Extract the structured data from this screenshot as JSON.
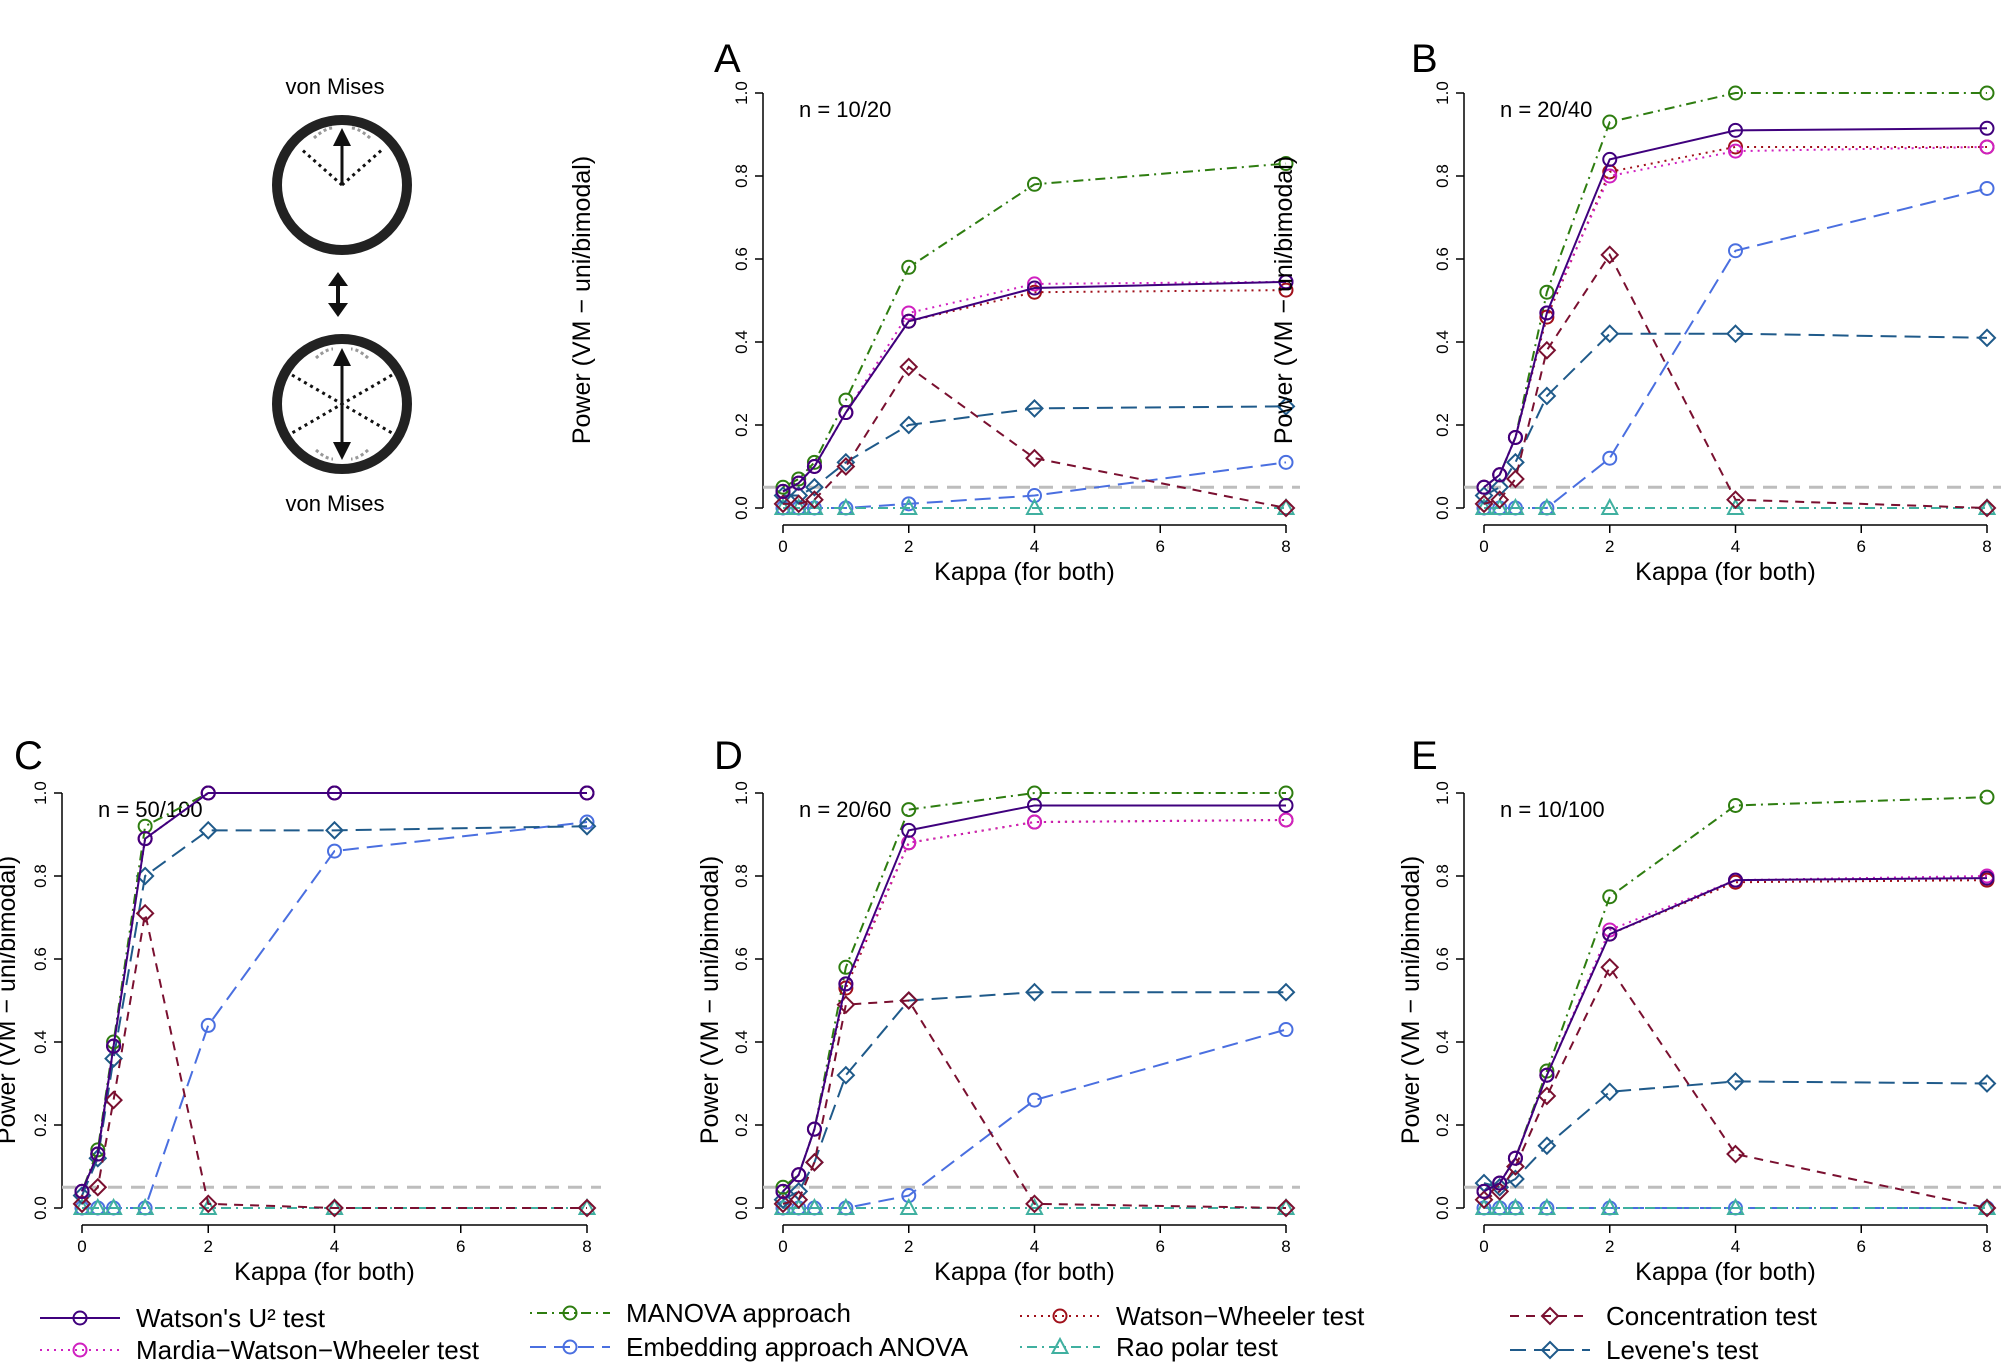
{
  "schematic": {
    "top_label": "von Mises",
    "bottom_label": "von Mises"
  },
  "legend": [
    {
      "label": "Watson's U² test",
      "color": "#3f007d",
      "dash": "solid",
      "marker": "circle"
    },
    {
      "label": "Mardia−Watson−Wheeler test",
      "color": "#d020c0",
      "dash": "dotted",
      "marker": "circle"
    },
    {
      "label": "MANOVA approach",
      "color": "#2e7d10",
      "dash": "dotdash",
      "marker": "circle"
    },
    {
      "label": "Embedding approach ANOVA",
      "color": "#4a6fe0",
      "dash": "longdash",
      "marker": "circle"
    },
    {
      "label": "Watson−Wheeler test",
      "color": "#a0101a",
      "dash": "dotted",
      "marker": "circle"
    },
    {
      "label": "Rao polar test",
      "color": "#40b0a0",
      "dash": "dotdash",
      "marker": "triangle"
    },
    {
      "label": "Concentration test",
      "color": "#7a1030",
      "dash": "dashed",
      "marker": "diamond"
    },
    {
      "label": "Levene's test",
      "color": "#1f5a8a",
      "dash": "longdash",
      "marker": "diamond"
    }
  ],
  "chart_data": [
    {
      "type": "line",
      "panel": "A",
      "annotation": "n = 10/20",
      "xlabel": "Kappa (for both)",
      "ylabel": "Power (VM − uni/bimodal)",
      "xlim": [
        0,
        8
      ],
      "ylim": [
        0,
        1
      ],
      "xticks": [
        "0",
        "2",
        "4",
        "6",
        "8"
      ],
      "yticks": [
        "0.0",
        "0.2",
        "0.4",
        "0.6",
        "0.8",
        "1.0"
      ],
      "reference_line": 0.05,
      "x": [
        0,
        0.25,
        0.5,
        1,
        2,
        4,
        8
      ],
      "series": [
        {
          "name": "Watson's U² test",
          "values": [
            0.04,
            0.06,
            0.1,
            0.23,
            0.45,
            0.53,
            0.545
          ]
        },
        {
          "name": "Mardia−Watson−Wheeler test",
          "values": [
            0.04,
            0.06,
            0.1,
            0.23,
            0.47,
            0.54,
            0.545
          ]
        },
        {
          "name": "MANOVA approach",
          "values": [
            0.05,
            0.07,
            0.11,
            0.26,
            0.58,
            0.78,
            0.83
          ]
        },
        {
          "name": "Embedding approach ANOVA",
          "values": [
            0.0,
            0.0,
            0.0,
            0.0,
            0.01,
            0.03,
            0.11
          ]
        },
        {
          "name": "Watson−Wheeler test",
          "values": [
            0.04,
            0.06,
            0.1,
            0.23,
            0.45,
            0.52,
            0.525
          ]
        },
        {
          "name": "Rao polar test",
          "values": [
            0.0,
            0.0,
            0.0,
            0.0,
            0.0,
            0.0,
            0.0
          ]
        },
        {
          "name": "Concentration test",
          "values": [
            0.01,
            0.01,
            0.02,
            0.1,
            0.34,
            0.12,
            0.0
          ]
        },
        {
          "name": "Levene's test",
          "values": [
            0.03,
            0.03,
            0.05,
            0.11,
            0.2,
            0.24,
            0.245
          ]
        }
      ]
    },
    {
      "type": "line",
      "panel": "B",
      "annotation": "n = 20/40",
      "xlabel": "Kappa (for both)",
      "ylabel": "Power (VM − uni/bimodal)",
      "xlim": [
        0,
        8
      ],
      "ylim": [
        0,
        1
      ],
      "xticks": [
        "0",
        "2",
        "4",
        "6",
        "8"
      ],
      "yticks": [
        "0.0",
        "0.2",
        "0.4",
        "0.6",
        "0.8",
        "1.0"
      ],
      "reference_line": 0.05,
      "x": [
        0,
        0.25,
        0.5,
        1,
        2,
        4,
        8
      ],
      "series": [
        {
          "name": "Watson's U² test",
          "values": [
            0.05,
            0.08,
            0.17,
            0.47,
            0.84,
            0.91,
            0.915
          ]
        },
        {
          "name": "Mardia−Watson−Wheeler test",
          "values": [
            0.05,
            0.08,
            0.17,
            0.47,
            0.8,
            0.86,
            0.87
          ]
        },
        {
          "name": "MANOVA approach",
          "values": [
            0.05,
            0.08,
            0.17,
            0.52,
            0.93,
            1.0,
            1.0
          ]
        },
        {
          "name": "Embedding approach ANOVA",
          "values": [
            0.0,
            0.0,
            0.0,
            0.0,
            0.12,
            0.62,
            0.77
          ]
        },
        {
          "name": "Watson−Wheeler test",
          "values": [
            0.05,
            0.08,
            0.17,
            0.46,
            0.81,
            0.87,
            0.87
          ]
        },
        {
          "name": "Rao polar test",
          "values": [
            0.0,
            0.0,
            0.0,
            0.0,
            0.0,
            0.0,
            0.0
          ]
        },
        {
          "name": "Concentration test",
          "values": [
            0.01,
            0.02,
            0.07,
            0.38,
            0.61,
            0.02,
            0.0
          ]
        },
        {
          "name": "Levene's test",
          "values": [
            0.03,
            0.05,
            0.11,
            0.27,
            0.42,
            0.42,
            0.41
          ]
        }
      ]
    },
    {
      "type": "line",
      "panel": "C",
      "annotation": "n = 50/100",
      "xlabel": "Kappa (for both)",
      "ylabel": "Power (VM − uni/bimodal)",
      "xlim": [
        0,
        8
      ],
      "ylim": [
        0,
        1
      ],
      "xticks": [
        "0",
        "2",
        "4",
        "6",
        "8"
      ],
      "yticks": [
        "0.0",
        "0.2",
        "0.4",
        "0.6",
        "0.8",
        "1.0"
      ],
      "reference_line": 0.05,
      "x": [
        0,
        0.25,
        0.5,
        1,
        2,
        4,
        8
      ],
      "series": [
        {
          "name": "Watson's U² test",
          "values": [
            0.04,
            0.13,
            0.39,
            0.89,
            1.0,
            1.0,
            1.0
          ]
        },
        {
          "name": "Mardia−Watson−Wheeler test",
          "values": [
            0.04,
            0.13,
            0.39,
            0.89,
            1.0,
            1.0,
            1.0
          ]
        },
        {
          "name": "MANOVA approach",
          "values": [
            0.04,
            0.14,
            0.4,
            0.92,
            1.0,
            1.0,
            1.0
          ]
        },
        {
          "name": "Embedding approach ANOVA",
          "values": [
            0.0,
            0.0,
            0.0,
            0.0,
            0.44,
            0.86,
            0.93
          ]
        },
        {
          "name": "Watson−Wheeler test",
          "values": [
            0.04,
            0.13,
            0.39,
            0.89,
            1.0,
            1.0,
            1.0
          ]
        },
        {
          "name": "Rao polar test",
          "values": [
            0.0,
            0.0,
            0.0,
            0.0,
            0.0,
            0.0,
            0.0
          ]
        },
        {
          "name": "Concentration test",
          "values": [
            0.01,
            0.05,
            0.26,
            0.71,
            0.01,
            0.0,
            0.0
          ]
        },
        {
          "name": "Levene's test",
          "values": [
            0.03,
            0.12,
            0.36,
            0.8,
            0.91,
            0.91,
            0.92
          ]
        }
      ]
    },
    {
      "type": "line",
      "panel": "D",
      "annotation": "n = 20/60",
      "xlabel": "Kappa (for both)",
      "ylabel": "Power (VM − uni/bimodal)",
      "xlim": [
        0,
        8
      ],
      "ylim": [
        0,
        1
      ],
      "xticks": [
        "0",
        "2",
        "4",
        "6",
        "8"
      ],
      "yticks": [
        "0.0",
        "0.2",
        "0.4",
        "0.6",
        "0.8",
        "1.0"
      ],
      "reference_line": 0.05,
      "x": [
        0,
        0.25,
        0.5,
        1,
        2,
        4,
        8
      ],
      "series": [
        {
          "name": "Watson's U² test",
          "values": [
            0.04,
            0.08,
            0.19,
            0.54,
            0.91,
            0.97,
            0.97
          ]
        },
        {
          "name": "Mardia−Watson−Wheeler test",
          "values": [
            0.04,
            0.08,
            0.19,
            0.54,
            0.88,
            0.93,
            0.935
          ]
        },
        {
          "name": "MANOVA approach",
          "values": [
            0.05,
            0.08,
            0.19,
            0.58,
            0.96,
            1.0,
            1.0
          ]
        },
        {
          "name": "Embedding approach ANOVA",
          "values": [
            0.0,
            0.0,
            0.0,
            0.0,
            0.03,
            0.26,
            0.43
          ]
        },
        {
          "name": "Watson−Wheeler test",
          "values": [
            0.04,
            0.08,
            0.19,
            0.53,
            0.88,
            0.93,
            0.935
          ]
        },
        {
          "name": "Rao polar test",
          "values": [
            0.0,
            0.0,
            0.0,
            0.0,
            0.0,
            0.0,
            0.0
          ]
        },
        {
          "name": "Concentration test",
          "values": [
            0.01,
            0.02,
            0.11,
            0.49,
            0.5,
            0.01,
            0.0
          ]
        },
        {
          "name": "Levene's test",
          "values": [
            0.02,
            0.04,
            0.11,
            0.32,
            0.5,
            0.52,
            0.52
          ]
        }
      ]
    },
    {
      "type": "line",
      "panel": "E",
      "annotation": "n = 10/100",
      "xlabel": "Kappa (for both)",
      "ylabel": "Power (VM − uni/bimodal)",
      "xlim": [
        0,
        8
      ],
      "ylim": [
        0,
        1
      ],
      "xticks": [
        "0",
        "2",
        "4",
        "6",
        "8"
      ],
      "yticks": [
        "0.0",
        "0.2",
        "0.4",
        "0.6",
        "0.8",
        "1.0"
      ],
      "reference_line": 0.05,
      "x": [
        0,
        0.25,
        0.5,
        1,
        2,
        4,
        8
      ],
      "series": [
        {
          "name": "Watson's U² test",
          "values": [
            0.04,
            0.06,
            0.12,
            0.32,
            0.66,
            0.79,
            0.795
          ]
        },
        {
          "name": "Mardia−Watson−Wheeler test",
          "values": [
            0.04,
            0.06,
            0.12,
            0.32,
            0.67,
            0.79,
            0.8
          ]
        },
        {
          "name": "MANOVA approach",
          "values": [
            0.04,
            0.06,
            0.12,
            0.33,
            0.75,
            0.97,
            0.99
          ]
        },
        {
          "name": "Embedding approach ANOVA",
          "values": [
            0.0,
            0.0,
            0.0,
            0.0,
            0.0,
            0.0,
            0.0
          ]
        },
        {
          "name": "Watson−Wheeler test",
          "values": [
            0.04,
            0.06,
            0.12,
            0.32,
            0.66,
            0.785,
            0.79
          ]
        },
        {
          "name": "Rao polar test",
          "values": [
            0.0,
            0.0,
            0.0,
            0.0,
            0.0,
            0.0,
            0.0
          ]
        },
        {
          "name": "Concentration test",
          "values": [
            0.02,
            0.04,
            0.1,
            0.27,
            0.58,
            0.13,
            0.0
          ]
        },
        {
          "name": "Levene's test",
          "values": [
            0.06,
            0.05,
            0.07,
            0.15,
            0.28,
            0.305,
            0.3
          ]
        }
      ]
    }
  ]
}
